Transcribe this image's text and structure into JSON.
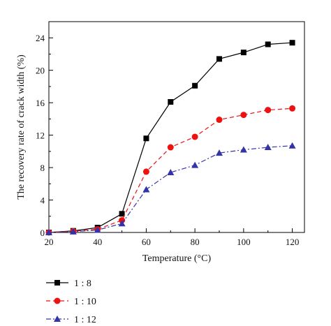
{
  "chart_data": {
    "type": "line",
    "title": "",
    "xlabel": "Temperature (°C)",
    "ylabel": "The recovery rate of crack width (%)",
    "xlim": [
      20,
      125
    ],
    "ylim": [
      0,
      26
    ],
    "xticks": [
      20,
      40,
      60,
      80,
      100,
      120
    ],
    "yticks": [
      0,
      4,
      8,
      12,
      16,
      20,
      24
    ],
    "grid": false,
    "legend_position": "bottom-left, below plot",
    "x": [
      20,
      30,
      40,
      50,
      60,
      70,
      80,
      90,
      100,
      110,
      120
    ],
    "series": [
      {
        "name": "1 : 8",
        "color": "#000000",
        "marker": "square",
        "line": "solid",
        "values": [
          0.0,
          0.2,
          0.6,
          2.3,
          11.6,
          16.1,
          18.1,
          21.4,
          22.2,
          23.2,
          23.4
        ]
      },
      {
        "name": "1 : 10",
        "color": "#ee1111",
        "marker": "circle",
        "line": "dashed",
        "values": [
          0.0,
          0.15,
          0.4,
          1.5,
          7.5,
          10.5,
          11.8,
          13.9,
          14.5,
          15.1,
          15.3
        ]
      },
      {
        "name": "1 : 12",
        "color": "#3333aa",
        "marker": "triangle",
        "line": "dashdot",
        "values": [
          0.0,
          0.1,
          0.3,
          1.1,
          5.3,
          7.4,
          8.3,
          9.8,
          10.2,
          10.5,
          10.7
        ]
      }
    ]
  }
}
